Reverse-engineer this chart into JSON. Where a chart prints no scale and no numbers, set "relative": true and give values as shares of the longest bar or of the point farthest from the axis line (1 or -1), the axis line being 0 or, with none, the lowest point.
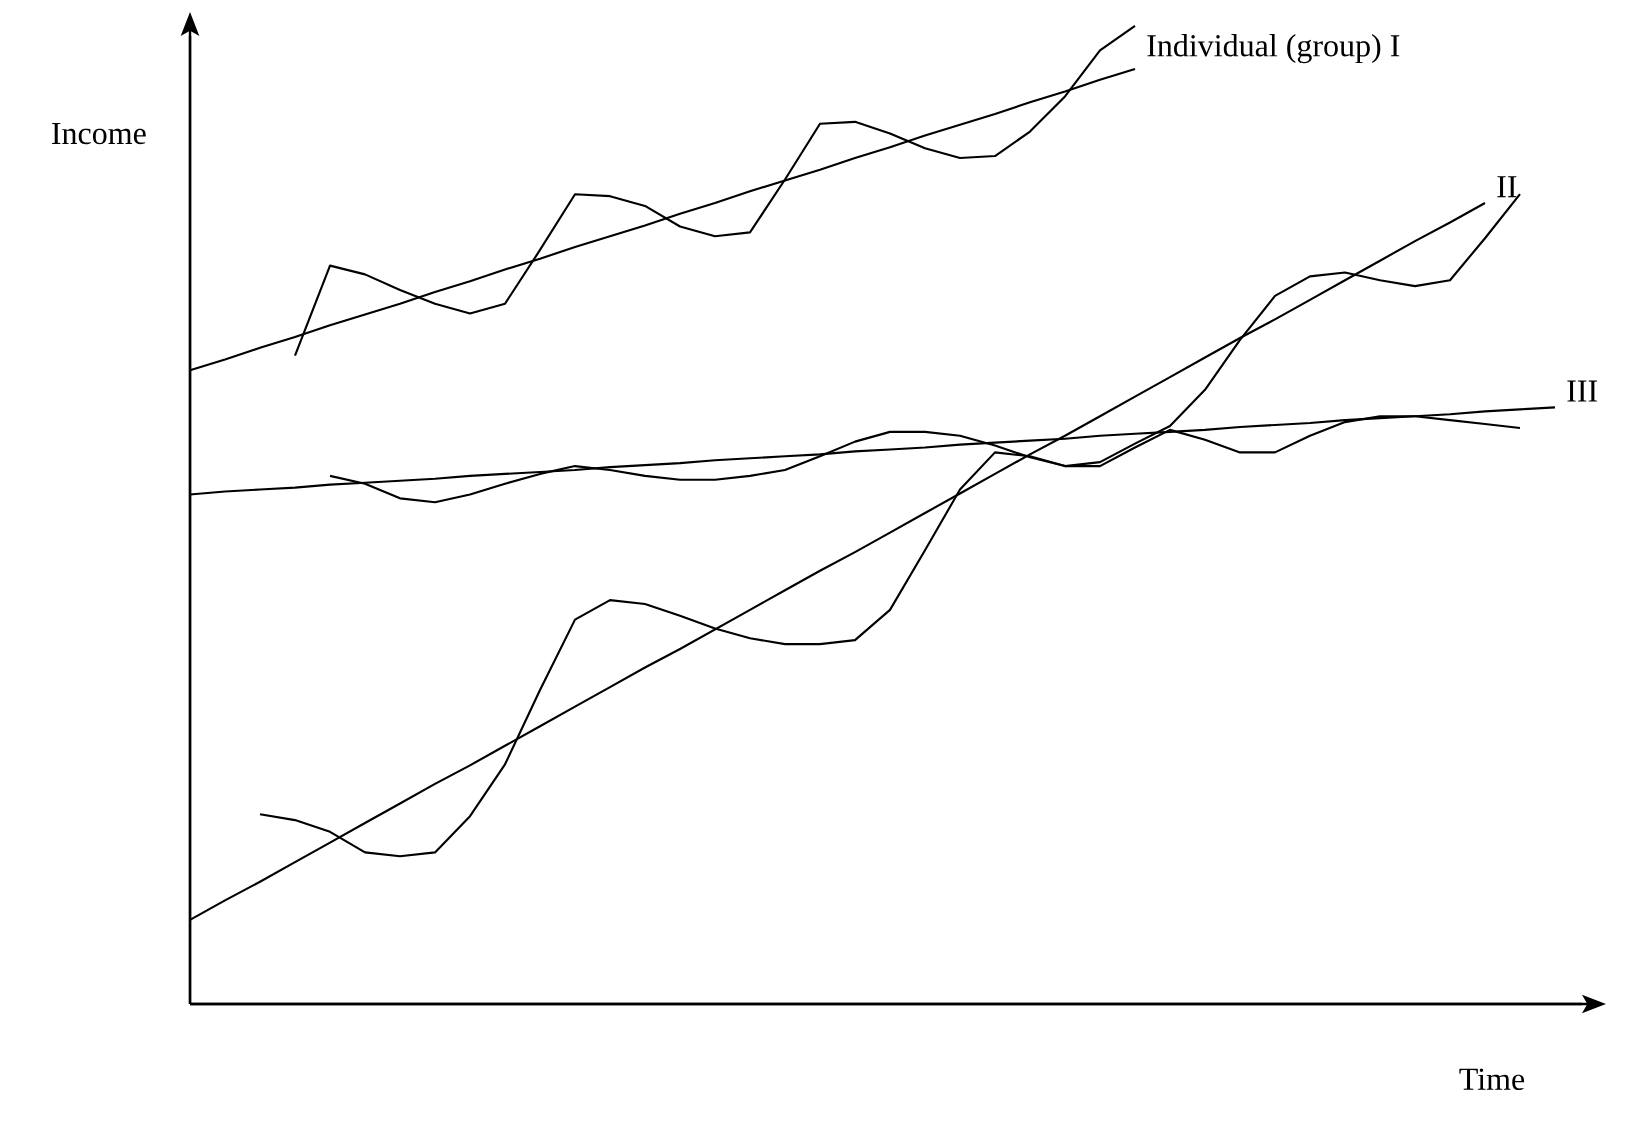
{
  "chart_data": {
    "type": "line",
    "relative": true,
    "xlabel": "Time",
    "ylabel": "Income",
    "categories": [
      null,
      null,
      null,
      null,
      null,
      null,
      null,
      null,
      null,
      null,
      null,
      null,
      null,
      null,
      null,
      null,
      null,
      null,
      null,
      null,
      null,
      null,
      null,
      null,
      null,
      null,
      null,
      null,
      null,
      null,
      null,
      null,
      null,
      null,
      null,
      null,
      null,
      null,
      null,
      null,
      null
    ],
    "series": [
      {
        "name": "Individual (group) I",
        "color": "#000000",
        "values": [
          0.648,
          0.659,
          0.671,
          0.682,
          0.694,
          0.705,
          0.716,
          0.728,
          0.739,
          0.751,
          0.762,
          0.774,
          0.785,
          0.796,
          0.808,
          0.819,
          0.831,
          0.842,
          0.853,
          0.865,
          0.876,
          0.888,
          0.899,
          0.91,
          0.922,
          0.933,
          0.945,
          0.956,
          null,
          null,
          null,
          null,
          null,
          null,
          null,
          null,
          null,
          null,
          null,
          null,
          null
        ]
      },
      {
        "name": "II",
        "color": "#000000",
        "values": [
          0.086,
          0.106,
          0.125,
          0.145,
          0.165,
          0.185,
          0.205,
          0.225,
          0.244,
          0.264,
          0.284,
          0.304,
          0.324,
          0.344,
          0.363,
          0.383,
          0.403,
          0.423,
          0.443,
          0.462,
          0.482,
          0.502,
          0.522,
          0.542,
          0.562,
          0.581,
          0.601,
          0.621,
          0.641,
          0.661,
          0.681,
          0.7,
          0.72,
          0.74,
          0.76,
          0.78,
          0.799,
          0.819,
          null,
          null,
          null
        ]
      },
      {
        "name": "III",
        "color": "#000000",
        "values": [
          0.521,
          0.524,
          0.526,
          0.528,
          0.531,
          0.533,
          0.535,
          0.537,
          0.54,
          0.542,
          0.544,
          0.546,
          0.549,
          0.551,
          0.553,
          0.556,
          0.558,
          0.56,
          0.562,
          0.565,
          0.567,
          0.569,
          0.572,
          0.574,
          0.576,
          0.578,
          0.581,
          0.583,
          0.585,
          0.587,
          0.59,
          0.592,
          0.594,
          0.597,
          0.599,
          0.601,
          0.603,
          0.606,
          0.608,
          0.61,
          null
        ]
      },
      {
        "color": "#000000",
        "values": [
          null,
          null,
          null,
          0.663,
          0.755,
          0.746,
          0.73,
          0.716,
          0.706,
          0.716,
          0.771,
          0.828,
          0.826,
          0.816,
          0.795,
          0.785,
          0.789,
          0.843,
          0.9,
          0.902,
          0.89,
          0.875,
          0.865,
          0.867,
          0.892,
          0.928,
          0.975,
          1.0,
          null,
          null,
          null,
          null,
          null,
          null,
          null,
          null,
          null,
          null,
          null,
          null,
          null
        ]
      },
      {
        "color": "#000000",
        "values": [
          null,
          null,
          0.194,
          0.188,
          0.176,
          0.155,
          0.151,
          0.155,
          0.192,
          0.245,
          0.321,
          0.393,
          0.413,
          0.409,
          0.397,
          0.384,
          0.374,
          0.368,
          0.368,
          0.372,
          0.403,
          0.464,
          0.526,
          0.564,
          0.56,
          0.55,
          0.554,
          0.573,
          0.591,
          0.628,
          0.679,
          0.724,
          0.744,
          0.748,
          0.74,
          0.734,
          0.74,
          0.783,
          0.828,
          null,
          null
        ]
      },
      {
        "color": "#000000",
        "values": [
          null,
          null,
          null,
          null,
          0.54,
          0.532,
          0.517,
          0.513,
          0.521,
          0.532,
          0.542,
          0.55,
          0.546,
          0.54,
          0.536,
          0.536,
          0.54,
          0.546,
          0.56,
          0.575,
          0.585,
          0.585,
          0.581,
          0.571,
          0.559,
          0.55,
          0.55,
          0.569,
          0.587,
          0.577,
          0.564,
          0.564,
          0.581,
          0.595,
          0.601,
          0.601,
          0.597,
          0.593,
          0.589,
          null,
          null
        ]
      }
    ]
  }
}
